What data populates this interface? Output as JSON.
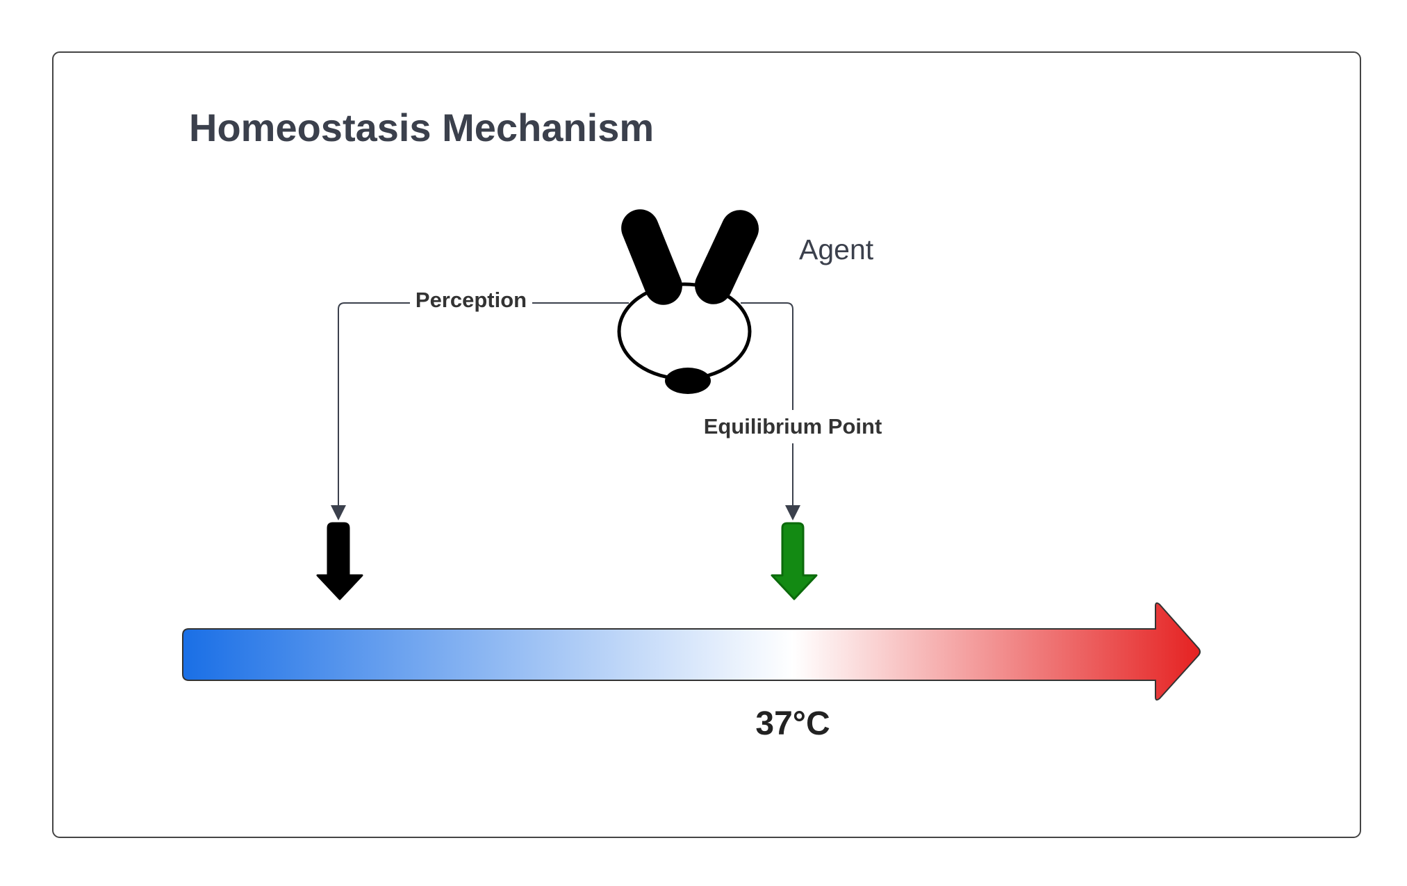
{
  "diagram": {
    "title": "Homeostasis Mechanism",
    "agent": {
      "label": "Agent"
    },
    "edges": {
      "perception": {
        "label": "Perception"
      },
      "equilibrium": {
        "label": "Equilibrium Point"
      }
    },
    "scale": {
      "marker_label": "37°C",
      "gradient": {
        "cold": "#1a6fe6",
        "neutral": "#ffffff",
        "hot": "#e52222"
      }
    },
    "markers": {
      "perception_color": "#000000",
      "equilibrium_color": "#138a13"
    },
    "colors": {
      "border": "#444444",
      "connector": "#3b404c"
    }
  }
}
